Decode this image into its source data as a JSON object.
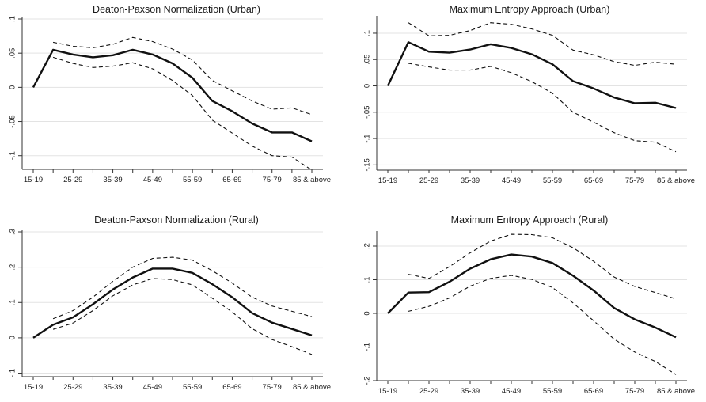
{
  "chart_data": [
    {
      "type": "line",
      "title": "Deaton-Paxson Normalization (Urban)",
      "categories": [
        "15-19",
        "25-29",
        "35-39",
        "45-49",
        "55-59",
        "65-69",
        "75-79",
        "85 & above"
      ],
      "x": [
        17,
        22,
        27,
        32,
        37,
        42,
        47,
        52,
        57,
        62,
        67,
        72,
        77,
        82,
        87
      ],
      "ylim": [
        -0.12,
        0.1
      ],
      "yticks": [
        0.1,
        0.05,
        0,
        -0.05,
        -0.1
      ],
      "ytick_labels": [
        ".1",
        ".05",
        "0",
        "-.05",
        "-.1"
      ],
      "series": [
        {
          "style": "solid",
          "values": [
            0.0,
            0.055,
            0.048,
            0.044,
            0.047,
            0.055,
            0.048,
            0.035,
            0.014,
            -0.02,
            -0.035,
            -0.053,
            -0.066,
            -0.066,
            -0.079
          ]
        },
        {
          "style": "dashed",
          "values": [
            null,
            0.066,
            0.06,
            0.058,
            0.063,
            0.073,
            0.067,
            0.056,
            0.04,
            0.01,
            -0.005,
            -0.02,
            -0.032,
            -0.03,
            -0.04
          ]
        },
        {
          "style": "dashed",
          "values": [
            null,
            0.044,
            0.035,
            0.029,
            0.031,
            0.036,
            0.027,
            0.01,
            -0.012,
            -0.048,
            -0.067,
            -0.086,
            -0.1,
            -0.102,
            -0.121
          ]
        }
      ]
    },
    {
      "type": "line",
      "title": "Maximum Entropy Approach (Urban)",
      "categories": [
        "15-19",
        "25-29",
        "35-39",
        "45-49",
        "55-59",
        "65-69",
        "75-79",
        "85 & above"
      ],
      "x": [
        17,
        22,
        27,
        32,
        37,
        42,
        47,
        52,
        57,
        62,
        67,
        72,
        77,
        82,
        87
      ],
      "ylim": [
        -0.16,
        0.13
      ],
      "yticks": [
        0.1,
        0.05,
        0,
        -0.05,
        -0.1,
        -0.15
      ],
      "ytick_labels": [
        ".1",
        ".05",
        "0",
        "-.05",
        "-.1",
        "-.15"
      ],
      "series": [
        {
          "style": "solid",
          "values": [
            0.0,
            0.083,
            0.065,
            0.063,
            0.069,
            0.079,
            0.072,
            0.06,
            0.041,
            0.009,
            -0.005,
            -0.022,
            -0.033,
            -0.032,
            -0.042
          ]
        },
        {
          "style": "dashed",
          "values": [
            null,
            0.12,
            0.095,
            0.096,
            0.105,
            0.12,
            0.117,
            0.108,
            0.096,
            0.068,
            0.059,
            0.046,
            0.039,
            0.045,
            0.041
          ]
        },
        {
          "style": "dashed",
          "values": [
            null,
            0.043,
            0.036,
            0.03,
            0.03,
            0.037,
            0.025,
            0.008,
            -0.014,
            -0.05,
            -0.069,
            -0.089,
            -0.104,
            -0.107,
            -0.125
          ]
        }
      ]
    },
    {
      "type": "line",
      "title": "Deaton-Paxson Normalization (Rural)",
      "categories": [
        "15-19",
        "25-29",
        "35-39",
        "45-49",
        "55-59",
        "65-69",
        "75-79",
        "85 & above"
      ],
      "x": [
        17,
        22,
        27,
        32,
        37,
        42,
        47,
        52,
        57,
        62,
        67,
        72,
        77,
        82,
        87
      ],
      "ylim": [
        -0.11,
        0.3
      ],
      "yticks": [
        0.3,
        0.2,
        0.1,
        0,
        -0.1
      ],
      "ytick_labels": [
        ".3",
        ".2",
        ".1",
        "0",
        "-.1"
      ],
      "series": [
        {
          "style": "solid",
          "values": [
            0.0,
            0.037,
            0.058,
            0.095,
            0.137,
            0.171,
            0.196,
            0.196,
            0.184,
            0.152,
            0.115,
            0.07,
            0.043,
            0.025,
            0.007
          ]
        },
        {
          "style": "dashed",
          "values": [
            null,
            0.054,
            0.077,
            0.115,
            0.16,
            0.2,
            0.225,
            0.228,
            0.22,
            0.19,
            0.155,
            0.115,
            0.09,
            0.075,
            0.06
          ]
        },
        {
          "style": "dashed",
          "values": [
            null,
            0.024,
            0.042,
            0.077,
            0.119,
            0.15,
            0.168,
            0.165,
            0.15,
            0.112,
            0.073,
            0.026,
            -0.005,
            -0.025,
            -0.047
          ]
        }
      ]
    },
    {
      "type": "line",
      "title": "Maximum Entropy Approach (Rural)",
      "categories": [
        "15-19",
        "25-29",
        "35-39",
        "45-49",
        "55-59",
        "65-69",
        "75-79",
        "85 & above"
      ],
      "x": [
        17,
        22,
        27,
        32,
        37,
        42,
        47,
        52,
        57,
        62,
        67,
        72,
        77,
        82,
        87
      ],
      "ylim": [
        -0.2,
        0.24
      ],
      "yticks": [
        0.2,
        0.1,
        0,
        -0.1,
        -0.2
      ],
      "ytick_labels": [
        ".2",
        ".1",
        "0",
        "-.1",
        "-.2"
      ],
      "series": [
        {
          "style": "solid",
          "values": [
            0.0,
            0.062,
            0.063,
            0.094,
            0.133,
            0.161,
            0.175,
            0.169,
            0.15,
            0.112,
            0.068,
            0.016,
            -0.018,
            -0.042,
            -0.071
          ]
        },
        {
          "style": "dashed",
          "values": [
            null,
            0.116,
            0.104,
            0.139,
            0.18,
            0.215,
            0.235,
            0.234,
            0.225,
            0.195,
            0.155,
            0.108,
            0.08,
            0.062,
            0.043
          ]
        },
        {
          "style": "dashed",
          "values": [
            null,
            0.006,
            0.021,
            0.046,
            0.081,
            0.104,
            0.113,
            0.101,
            0.077,
            0.031,
            -0.022,
            -0.077,
            -0.115,
            -0.143,
            -0.182
          ]
        }
      ]
    }
  ]
}
